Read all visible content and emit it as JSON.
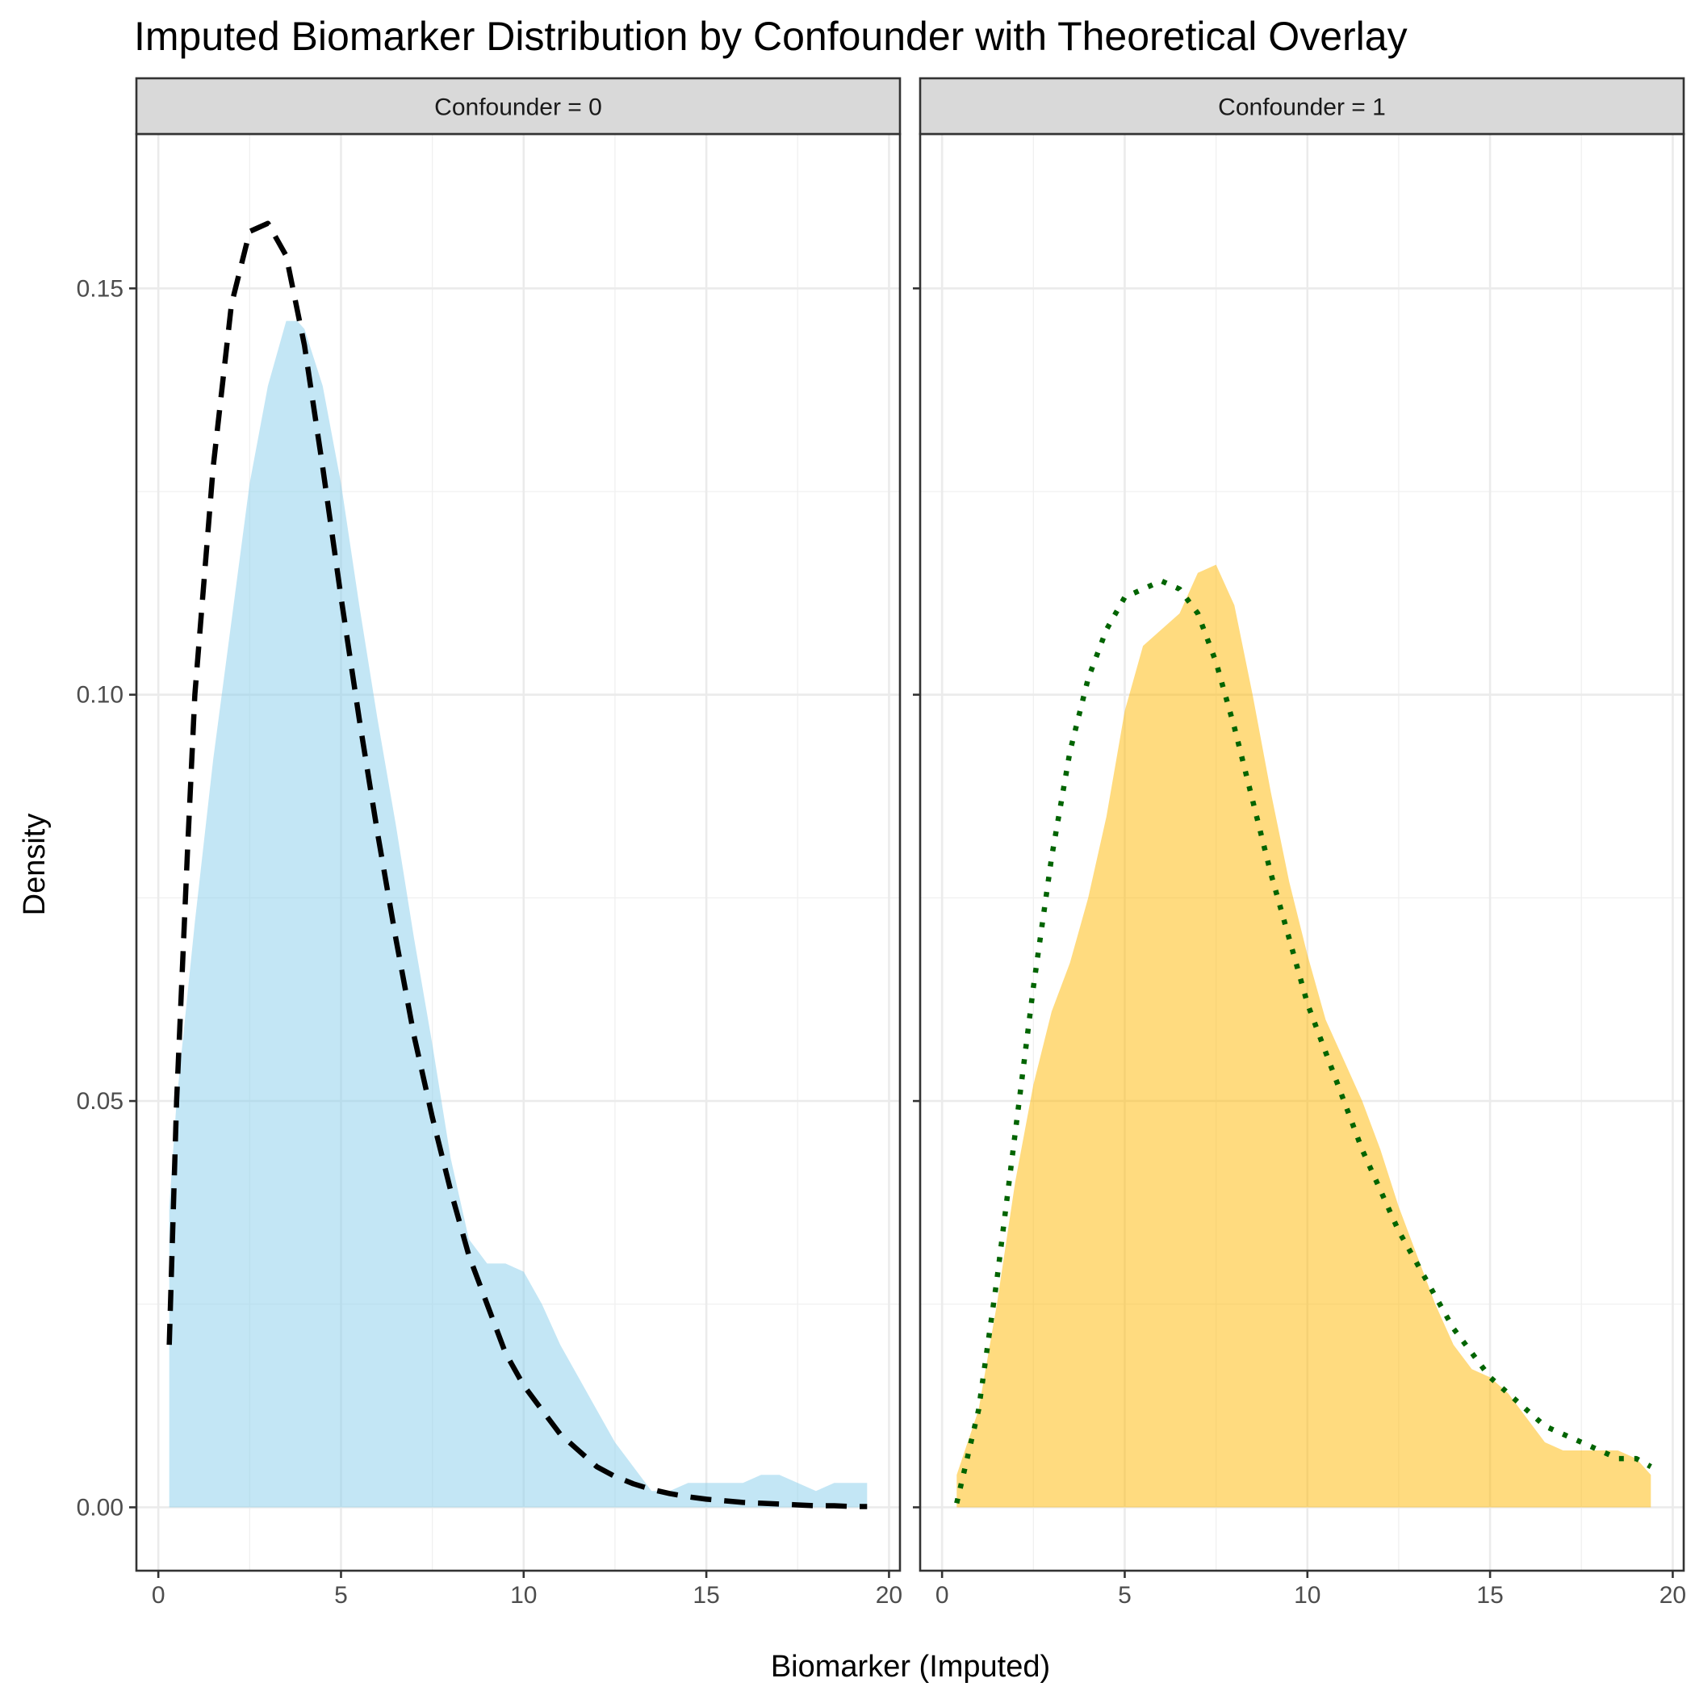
{
  "chart_data": {
    "type": "area",
    "title": "Imputed Biomarker Distribution by Confounder with Theoretical Overlay",
    "xlabel": "Biomarker (Imputed)",
    "ylabel": "Density",
    "xlim": [
      -0.6,
      20.3
    ],
    "ylim": [
      -0.0078,
      0.169
    ],
    "x_ticks": [
      0,
      5,
      10,
      15,
      20
    ],
    "x_tick_labels": [
      "0",
      "5",
      "10",
      "15",
      "20"
    ],
    "y_ticks": [
      0,
      0.05,
      0.1,
      0.15
    ],
    "y_tick_labels": [
      "0.00",
      "0.05",
      "0.10",
      "0.15"
    ],
    "grid": true,
    "panels": [
      {
        "label": "Confounder = 0",
        "fill_color": "#87CEEB",
        "line_color": "#000000",
        "line_style": "dashed",
        "density": {
          "x": [
            0.3,
            0.5,
            1.0,
            1.5,
            2.0,
            2.5,
            3.0,
            3.5,
            3.8,
            4.0,
            4.5,
            5.0,
            5.5,
            6.0,
            6.5,
            7.0,
            7.5,
            8.0,
            8.5,
            9.0,
            9.5,
            10.0,
            10.5,
            11.0,
            11.5,
            12.0,
            12.5,
            13.0,
            13.5,
            14.0,
            14.5,
            15.0,
            15.5,
            16.0,
            16.5,
            17.0,
            17.5,
            18.0,
            18.5,
            19.0,
            19.4
          ],
          "y": [
            0.037,
            0.05,
            0.072,
            0.092,
            0.109,
            0.126,
            0.138,
            0.146,
            0.146,
            0.145,
            0.138,
            0.126,
            0.111,
            0.097,
            0.084,
            0.07,
            0.057,
            0.043,
            0.033,
            0.03,
            0.03,
            0.029,
            0.025,
            0.02,
            0.016,
            0.012,
            0.008,
            0.005,
            0.002,
            0.002,
            0.003,
            0.003,
            0.003,
            0.003,
            0.004,
            0.004,
            0.003,
            0.002,
            0.003,
            0.003,
            0.003
          ]
        },
        "theoretical": {
          "x": [
            0.3,
            0.5,
            0.8,
            1.0,
            1.5,
            2.0,
            2.5,
            3.0,
            3.5,
            4.0,
            4.5,
            5.0,
            5.5,
            6.0,
            6.5,
            7.0,
            7.5,
            8.0,
            8.5,
            9.0,
            9.5,
            10.0,
            10.5,
            11.0,
            11.5,
            12.0,
            12.5,
            13.0,
            13.5,
            14.0,
            14.5,
            15.0,
            15.5,
            16.0,
            16.5,
            17.0,
            17.5,
            18.0,
            18.5,
            19.0,
            19.4
          ],
          "y": [
            0.02,
            0.05,
            0.081,
            0.1,
            0.128,
            0.148,
            0.157,
            0.158,
            0.154,
            0.143,
            0.128,
            0.112,
            0.097,
            0.083,
            0.07,
            0.058,
            0.048,
            0.039,
            0.031,
            0.025,
            0.019,
            0.015,
            0.012,
            0.009,
            0.007,
            0.005,
            0.0038,
            0.0029,
            0.0022,
            0.0017,
            0.0013,
            0.001,
            0.0008,
            0.0006,
            0.0005,
            0.0004,
            0.0003,
            0.0002,
            0.0002,
            0.0001,
            0.0001
          ]
        }
      },
      {
        "label": "Confounder = 1",
        "fill_color": "#FFB800",
        "line_color": "#006400",
        "line_style": "dotted",
        "density": {
          "x": [
            0.4,
            1.0,
            1.5,
            2.0,
            2.5,
            3.0,
            3.5,
            4.0,
            4.5,
            5.0,
            5.5,
            6.0,
            6.5,
            7.0,
            7.5,
            8.0,
            8.5,
            9.0,
            9.5,
            10.0,
            10.5,
            11.0,
            11.5,
            12.0,
            12.5,
            13.0,
            13.5,
            14.0,
            14.5,
            15.0,
            15.5,
            16.0,
            16.5,
            17.0,
            17.5,
            18.0,
            18.5,
            19.0,
            19.4
          ],
          "y": [
            0.004,
            0.012,
            0.025,
            0.04,
            0.052,
            0.061,
            0.067,
            0.075,
            0.085,
            0.098,
            0.106,
            0.108,
            0.11,
            0.115,
            0.116,
            0.111,
            0.1,
            0.088,
            0.077,
            0.068,
            0.06,
            0.055,
            0.05,
            0.044,
            0.037,
            0.031,
            0.025,
            0.02,
            0.017,
            0.016,
            0.014,
            0.011,
            0.008,
            0.007,
            0.007,
            0.007,
            0.007,
            0.006,
            0.004
          ]
        },
        "theoretical": {
          "x": [
            0.4,
            1.0,
            1.5,
            2.0,
            2.5,
            3.0,
            3.5,
            4.0,
            4.5,
            5.0,
            5.5,
            6.0,
            6.5,
            7.0,
            7.5,
            8.0,
            8.5,
            9.0,
            9.5,
            10.0,
            10.5,
            11.0,
            11.5,
            12.0,
            12.5,
            13.0,
            13.5,
            14.0,
            14.5,
            15.0,
            15.5,
            16.0,
            16.5,
            17.0,
            17.5,
            18.0,
            18.5,
            19.0,
            19.4
          ],
          "y": [
            0.0005,
            0.012,
            0.028,
            0.046,
            0.064,
            0.08,
            0.093,
            0.102,
            0.108,
            0.112,
            0.113,
            0.114,
            0.113,
            0.11,
            0.104,
            0.096,
            0.087,
            0.078,
            0.07,
            0.062,
            0.056,
            0.05,
            0.044,
            0.039,
            0.034,
            0.03,
            0.026,
            0.022,
            0.019,
            0.016,
            0.014,
            0.012,
            0.01,
            0.009,
            0.008,
            0.007,
            0.006,
            0.006,
            0.005
          ]
        }
      }
    ]
  }
}
